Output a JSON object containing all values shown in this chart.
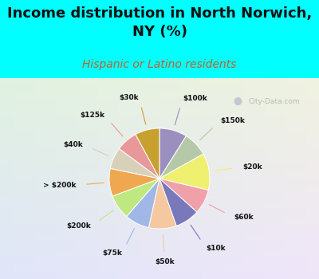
{
  "title": "Income distribution in North Norwich,\nNY (%)",
  "subtitle": "Hispanic or Latino residents",
  "page_bg": "#00FFFF",
  "chart_bg": "#e8f5ee",
  "watermark": "City-Data.com",
  "slices": [
    {
      "label": "$100k",
      "value": 9,
      "color": "#9b8fc0"
    },
    {
      "label": "$150k",
      "value": 8,
      "color": "#b5c9a8"
    },
    {
      "label": "$20k",
      "value": 12,
      "color": "#f0f070"
    },
    {
      "label": "$60k",
      "value": 8,
      "color": "#f0a0a8"
    },
    {
      "label": "$10k",
      "value": 8,
      "color": "#7878bb"
    },
    {
      "label": "$50k",
      "value": 9,
      "color": "#f5c8a0"
    },
    {
      "label": "$75k",
      "value": 8,
      "color": "#a0b8e8"
    },
    {
      "label": "$200k",
      "value": 8,
      "color": "#c0e880"
    },
    {
      "label": "> $200k",
      "value": 9,
      "color": "#f0a850"
    },
    {
      "label": "$40k",
      "value": 7,
      "color": "#d8d0b8"
    },
    {
      "label": "$125k",
      "value": 7,
      "color": "#e89898"
    },
    {
      "label": "$30k",
      "value": 8,
      "color": "#c8a030"
    }
  ],
  "label_color": "#111111",
  "title_fontsize": 13,
  "subtitle_fontsize": 10,
  "subtitle_color": "#c06030"
}
